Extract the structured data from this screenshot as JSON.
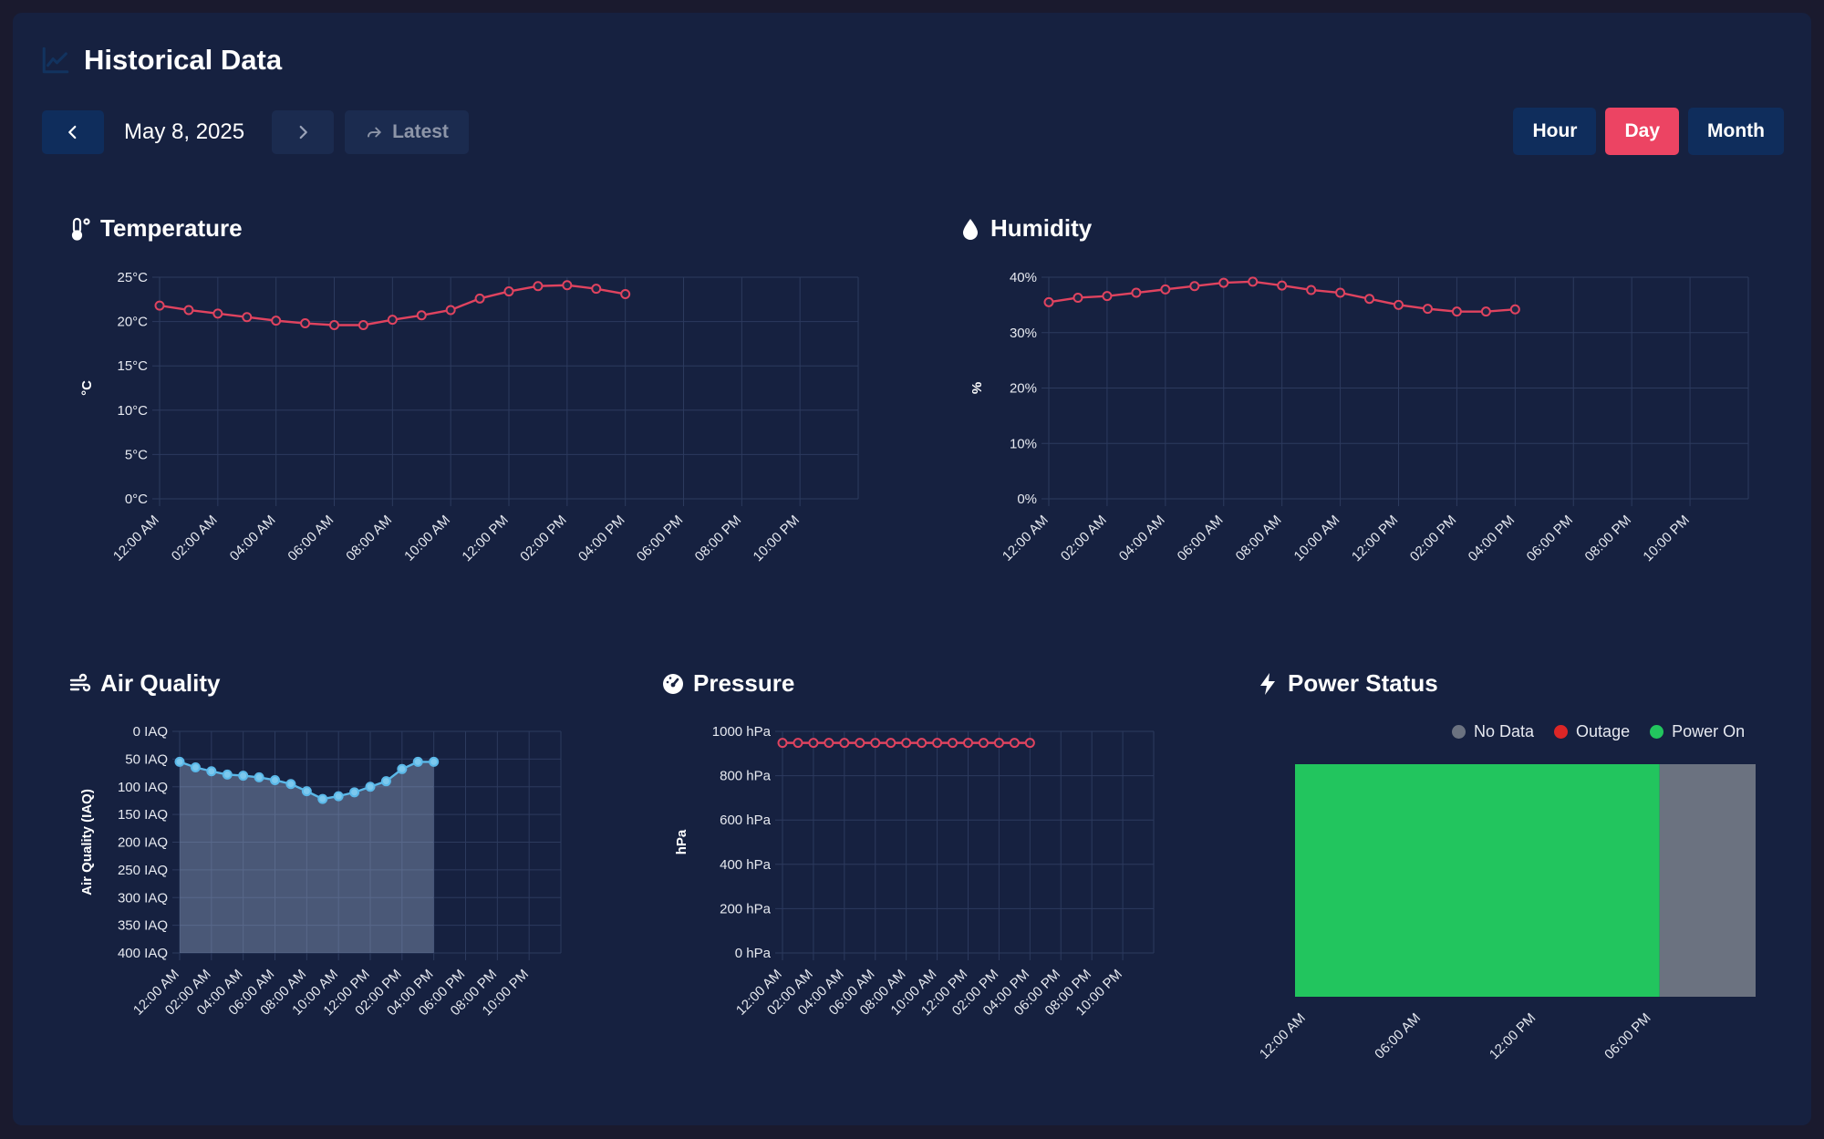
{
  "header": {
    "title": "Historical Data",
    "icon": "chart-line-icon"
  },
  "nav": {
    "date": "May 8, 2025",
    "latest_label": "Latest",
    "ranges": [
      {
        "label": "Hour",
        "active": false
      },
      {
        "label": "Day",
        "active": true
      },
      {
        "label": "Month",
        "active": false
      }
    ]
  },
  "colors": {
    "accent": "#ec4463",
    "nav_button": "#0f2d5c",
    "series_red": "#e0435f",
    "series_blue": "#5bb8e8",
    "power_on": "#22c55e",
    "outage": "#dc2626",
    "no_data": "#6b7280"
  },
  "panels": {
    "temperature": {
      "title": "Temperature",
      "icon": "thermometer-icon"
    },
    "humidity": {
      "title": "Humidity",
      "icon": "droplet-icon"
    },
    "air_quality": {
      "title": "Air Quality",
      "icon": "wind-icon"
    },
    "pressure": {
      "title": "Pressure",
      "icon": "gauge-icon"
    },
    "power": {
      "title": "Power Status",
      "icon": "bolt-icon"
    }
  },
  "chart_data": [
    {
      "id": "temperature",
      "type": "line",
      "ylabel": "°C",
      "x_ticks": [
        "12:00 AM",
        "02:00 AM",
        "04:00 AM",
        "06:00 AM",
        "08:00 AM",
        "10:00 AM",
        "12:00 PM",
        "02:00 PM",
        "04:00 PM",
        "06:00 PM",
        "08:00 PM",
        "10:00 PM"
      ],
      "y_ticks": [
        "0°C",
        "5°C",
        "10°C",
        "15°C",
        "20°C",
        "25°C"
      ],
      "ylim": [
        0,
        25
      ],
      "x_range_hours": [
        0,
        24
      ],
      "x_hours": [
        0,
        1,
        2,
        3,
        4,
        5,
        6,
        7,
        8,
        9,
        10,
        11,
        12,
        13,
        14,
        15,
        16
      ],
      "values": [
        21.8,
        21.3,
        20.9,
        20.5,
        20.1,
        19.8,
        19.6,
        19.6,
        20.2,
        20.7,
        21.3,
        22.6,
        23.4,
        24.0,
        24.1,
        23.7,
        23.1
      ],
      "grid": true
    },
    {
      "id": "humidity",
      "type": "line",
      "ylabel": "%",
      "x_ticks": [
        "12:00 AM",
        "02:00 AM",
        "04:00 AM",
        "06:00 AM",
        "08:00 AM",
        "10:00 AM",
        "12:00 PM",
        "02:00 PM",
        "04:00 PM",
        "06:00 PM",
        "08:00 PM",
        "10:00 PM"
      ],
      "y_ticks": [
        "0%",
        "10%",
        "20%",
        "30%",
        "40%"
      ],
      "ylim": [
        0,
        40
      ],
      "x_range_hours": [
        0,
        24
      ],
      "x_hours": [
        0,
        1,
        2,
        3,
        4,
        5,
        6,
        7,
        8,
        9,
        10,
        11,
        12,
        13,
        14,
        15,
        16
      ],
      "values": [
        35.5,
        36.3,
        36.6,
        37.2,
        37.8,
        38.4,
        39.0,
        39.2,
        38.5,
        37.7,
        37.2,
        36.1,
        35.0,
        34.3,
        33.8,
        33.8,
        34.2
      ],
      "grid": true
    },
    {
      "id": "air_quality",
      "type": "area",
      "ylabel": "Air Quality (IAQ)",
      "x_ticks": [
        "12:00 AM",
        "02:00 AM",
        "04:00 AM",
        "06:00 AM",
        "08:00 AM",
        "10:00 AM",
        "12:00 PM",
        "02:00 PM",
        "04:00 PM",
        "06:00 PM",
        "08:00 PM",
        "10:00 PM"
      ],
      "y_ticks": [
        "0 IAQ",
        "50 IAQ",
        "100 IAQ",
        "150 IAQ",
        "200 IAQ",
        "250 IAQ",
        "300 IAQ",
        "350 IAQ",
        "400 IAQ"
      ],
      "ylim": [
        0,
        400
      ],
      "y_reversed": true,
      "x_range_hours": [
        0,
        24
      ],
      "x_hours": [
        0,
        1,
        2,
        3,
        4,
        5,
        6,
        7,
        8,
        9,
        10,
        11,
        12,
        13,
        14,
        15,
        16
      ],
      "values": [
        55,
        65,
        72,
        78,
        80,
        83,
        88,
        95,
        108,
        122,
        117,
        110,
        100,
        90,
        68,
        55,
        55
      ],
      "grid": true
    },
    {
      "id": "pressure",
      "type": "line",
      "ylabel": "hPa",
      "x_ticks": [
        "12:00 AM",
        "02:00 AM",
        "04:00 AM",
        "06:00 AM",
        "08:00 AM",
        "10:00 AM",
        "12:00 PM",
        "02:00 PM",
        "04:00 PM",
        "06:00 PM",
        "08:00 PM",
        "10:00 PM"
      ],
      "y_ticks": [
        "0 hPa",
        "200 hPa",
        "400 hPa",
        "600 hPa",
        "800 hPa",
        "1000 hPa"
      ],
      "ylim": [
        0,
        1000
      ],
      "x_range_hours": [
        0,
        24
      ],
      "x_hours": [
        0,
        1,
        2,
        3,
        4,
        5,
        6,
        7,
        8,
        9,
        10,
        11,
        12,
        13,
        14,
        15,
        16
      ],
      "values": [
        948,
        948,
        948,
        948,
        948,
        948,
        948,
        948,
        948,
        948,
        948,
        948,
        948,
        948,
        948,
        948,
        948
      ],
      "grid": true
    },
    {
      "id": "power",
      "type": "bar",
      "legend": [
        "No Data",
        "Outage",
        "Power On"
      ],
      "legend_position": "top-right",
      "x_ticks": [
        "12:00 AM",
        "06:00 AM",
        "12:00 PM",
        "06:00 PM"
      ],
      "x_range_hours": [
        0,
        24
      ],
      "segments": [
        {
          "status": "Power On",
          "start_hour": 0,
          "end_hour": 19
        },
        {
          "status": "No Data",
          "start_hour": 19,
          "end_hour": 24
        }
      ]
    }
  ]
}
